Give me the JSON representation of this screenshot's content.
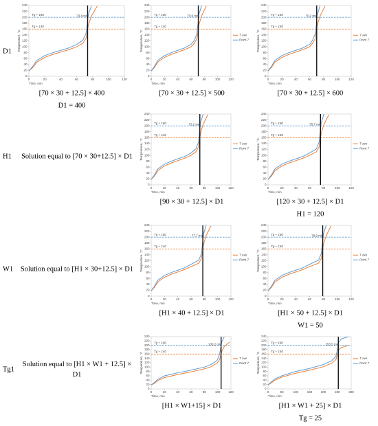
{
  "rows": [
    {
      "label": "D1",
      "text": []
    },
    {
      "label": "H1",
      "text": [
        "Solution equal to [70 × 30+12.5] × D1"
      ]
    },
    {
      "label": "W1",
      "text": [
        "Solution equal to [H1 × 30+12.5] × D1"
      ]
    },
    {
      "label": "Tg1",
      "text": [
        "Solution equal to [H1 × W1 + 12.5] ×",
        "D1"
      ]
    }
  ],
  "chart_data": [
    {
      "type": "line",
      "caption": [
        "[70 × 30 + 12.5] × 400",
        "D1 = 400"
      ],
      "xlabel": "Time, min",
      "ylabel": "Temperature, °C",
      "xlim": [
        0,
        120
      ],
      "xticks": [
        0,
        20,
        40,
        60,
        80,
        100,
        120
      ],
      "ylim": [
        0,
        240
      ],
      "yticks": [
        0,
        20,
        40,
        60,
        80,
        100,
        120,
        140,
        160,
        180,
        200,
        220,
        240
      ],
      "legend": false,
      "marker": {
        "value": 73.8,
        "label": "73.8 min"
      },
      "ref_lines": [
        {
          "value": 200,
          "label": "Tg + 180",
          "color": "#5b9bd5"
        },
        {
          "value": 160,
          "label": "Tg + 140",
          "color": "#ed7d31"
        }
      ],
      "x": [
        0,
        5,
        10,
        20,
        30,
        40,
        50,
        60,
        67.8,
        71.8,
        74.8,
        78.8,
        85.8
      ],
      "series": [
        {
          "name": "T ave",
          "color": "#ed7d31",
          "values": [
            18,
            30,
            48,
            64,
            74,
            82,
            90,
            100,
            112,
            128,
            175,
            205,
            238
          ]
        },
        {
          "name": "Point 7",
          "color": "#5b9bd5",
          "values": [
            18,
            34,
            54,
            70,
            80,
            88,
            96,
            108,
            122,
            145,
            210,
            240,
            null
          ]
        }
      ]
    },
    {
      "type": "line",
      "caption": [
        "[70 × 30 + 12.5] × 500"
      ],
      "xlabel": "Time, min",
      "ylabel": "Temperature, °C",
      "xlim": [
        0,
        120
      ],
      "xticks": [
        0,
        20,
        40,
        60,
        80,
        100,
        120
      ],
      "ylim": [
        0,
        240
      ],
      "yticks": [
        0,
        20,
        40,
        60,
        80,
        100,
        120,
        140,
        160,
        180,
        200,
        220,
        240
      ],
      "legend": "right",
      "marker": {
        "value": 70.9,
        "label": "70.9 min"
      },
      "ref_lines": [
        {
          "value": 200,
          "label": "Tg + 180",
          "color": "#5b9bd5"
        },
        {
          "value": 160,
          "label": "Tg + 140",
          "color": "#ed7d31"
        }
      ],
      "x": [
        0,
        5,
        10,
        20,
        30,
        40,
        50,
        60,
        64.9,
        68.9,
        71.9,
        75.9,
        82.9
      ],
      "series": [
        {
          "name": "T ave",
          "color": "#ed7d31",
          "values": [
            18,
            30,
            48,
            64,
            74,
            82,
            90,
            100,
            112,
            128,
            175,
            205,
            238
          ]
        },
        {
          "name": "Point 7",
          "color": "#5b9bd5",
          "values": [
            18,
            34,
            54,
            70,
            80,
            88,
            96,
            108,
            122,
            145,
            210,
            240,
            null
          ]
        }
      ]
    },
    {
      "type": "line",
      "caption": [
        "[70 × 30 + 12.5] × 600"
      ],
      "xlabel": "Time, min",
      "ylabel": "Temperature, °C",
      "xlim": [
        0,
        120
      ],
      "xticks": [
        0,
        20,
        40,
        60,
        80,
        100,
        120
      ],
      "ylim": [
        0,
        240
      ],
      "yticks": [
        0,
        20,
        40,
        60,
        80,
        100,
        120,
        140,
        160,
        180,
        200,
        220,
        240
      ],
      "legend": "right",
      "marker": {
        "value": 70.2,
        "label": "70.2 min"
      },
      "ref_lines": [
        {
          "value": 200,
          "label": "Tg + 180",
          "color": "#5b9bd5"
        },
        {
          "value": 160,
          "label": "Tg + 140",
          "color": "#ed7d31"
        }
      ],
      "x": [
        0,
        5,
        10,
        20,
        30,
        40,
        50,
        60,
        64.2,
        68.2,
        71.2,
        75.2,
        82.2
      ],
      "series": [
        {
          "name": "T ave",
          "color": "#ed7d31",
          "values": [
            18,
            30,
            48,
            64,
            74,
            82,
            90,
            100,
            112,
            128,
            175,
            205,
            238
          ]
        },
        {
          "name": "Point 7",
          "color": "#5b9bd5",
          "values": [
            18,
            34,
            54,
            70,
            80,
            88,
            96,
            108,
            122,
            145,
            210,
            240,
            null
          ]
        }
      ]
    },
    {
      "type": "line",
      "caption": [
        "[90 × 30 + 12.5] × D1"
      ],
      "xlabel": "Time, min",
      "ylabel": "Temperature, °C",
      "xlim": [
        0,
        120
      ],
      "xticks": [
        0,
        20,
        40,
        60,
        80,
        100,
        120
      ],
      "ylim": [
        0,
        240
      ],
      "yticks": [
        0,
        20,
        40,
        60,
        80,
        100,
        120,
        140,
        160,
        180,
        200,
        220,
        240
      ],
      "legend": "right",
      "marker": {
        "value": 73.2,
        "label": "73.2 min"
      },
      "ref_lines": [
        {
          "value": 200,
          "label": "Tg + 180",
          "color": "#5b9bd5"
        },
        {
          "value": 160,
          "label": "Tg + 140",
          "color": "#ed7d31"
        }
      ],
      "x": [
        0,
        5,
        10,
        20,
        30,
        40,
        50,
        60,
        67.2,
        71.2,
        74.2,
        78.2,
        85.2
      ],
      "series": [
        {
          "name": "T ave",
          "color": "#ed7d31",
          "values": [
            18,
            30,
            48,
            64,
            74,
            82,
            90,
            100,
            112,
            128,
            175,
            205,
            238
          ]
        },
        {
          "name": "Point 7",
          "color": "#5b9bd5",
          "values": [
            18,
            34,
            54,
            70,
            80,
            88,
            96,
            108,
            122,
            145,
            210,
            240,
            null
          ]
        }
      ]
    },
    {
      "type": "line",
      "caption": [
        "[120 × 30 + 12.5] × D1",
        "H1 = 120"
      ],
      "xlabel": "Time, min",
      "ylabel": "Temperature, °C",
      "xlim": [
        0,
        120
      ],
      "xticks": [
        0,
        20,
        40,
        60,
        80,
        100,
        120
      ],
      "ylim": [
        0,
        240
      ],
      "yticks": [
        0,
        20,
        40,
        60,
        80,
        100,
        120,
        140,
        160,
        180,
        200,
        220,
        240
      ],
      "legend": "right",
      "marker": {
        "value": 75.7,
        "label": "75.7 min"
      },
      "ref_lines": [
        {
          "value": 200,
          "label": "Tg + 180",
          "color": "#5b9bd5"
        },
        {
          "value": 160,
          "label": "Tg + 140",
          "color": "#ed7d31"
        }
      ],
      "x": [
        0,
        5,
        10,
        20,
        30,
        40,
        50,
        60,
        69.7,
        73.7,
        76.7,
        80.7,
        87.7
      ],
      "series": [
        {
          "name": "T ave",
          "color": "#ed7d31",
          "values": [
            18,
            30,
            48,
            64,
            74,
            82,
            90,
            100,
            112,
            128,
            175,
            205,
            238
          ]
        },
        {
          "name": "Point 7",
          "color": "#5b9bd5",
          "values": [
            18,
            34,
            54,
            70,
            80,
            88,
            96,
            108,
            122,
            145,
            210,
            240,
            null
          ]
        }
      ]
    },
    {
      "type": "line",
      "caption": [
        "[H1 × 40 + 12.5] × D1"
      ],
      "xlabel": "Time, min",
      "ylabel": "Temperature, °C",
      "xlim": [
        0,
        120
      ],
      "xticks": [
        0,
        20,
        40,
        60,
        80,
        100,
        120
      ],
      "ylim": [
        0,
        240
      ],
      "yticks": [
        0,
        20,
        40,
        60,
        80,
        100,
        120,
        140,
        160,
        180,
        200,
        220,
        240
      ],
      "legend": "right",
      "marker": {
        "value": 77.7,
        "label": "77.7 min"
      },
      "ref_lines": [
        {
          "value": 200,
          "label": "Tg + 180",
          "color": "#5b9bd5"
        },
        {
          "value": 160,
          "label": "Tg + 140",
          "color": "#ed7d31"
        }
      ],
      "x": [
        0,
        5,
        10,
        20,
        30,
        40,
        50,
        60,
        71.7,
        75.7,
        78.7,
        82.7,
        89.7
      ],
      "series": [
        {
          "name": "T ave",
          "color": "#ed7d31",
          "values": [
            18,
            30,
            48,
            64,
            74,
            82,
            90,
            100,
            112,
            128,
            175,
            205,
            238
          ]
        },
        {
          "name": "Point 7",
          "color": "#5b9bd5",
          "values": [
            18,
            34,
            54,
            70,
            80,
            88,
            96,
            108,
            122,
            145,
            210,
            240,
            null
          ]
        }
      ]
    },
    {
      "type": "line",
      "caption": [
        "[H1 × 50 + 12.5] × D1",
        "W1 = 50"
      ],
      "xlabel": "Time, min",
      "ylabel": "Temperature, °C",
      "xlim": [
        0,
        120
      ],
      "xticks": [
        0,
        20,
        40,
        60,
        80,
        100,
        120
      ],
      "ylim": [
        0,
        240
      ],
      "yticks": [
        0,
        20,
        40,
        60,
        80,
        100,
        120,
        140,
        160,
        180,
        200,
        220,
        240
      ],
      "legend": "right",
      "marker": {
        "value": 78.9,
        "label": "78.9 min"
      },
      "ref_lines": [
        {
          "value": 200,
          "label": "Tg + 180",
          "color": "#5b9bd5"
        },
        {
          "value": 160,
          "label": "Tg + 140",
          "color": "#ed7d31"
        }
      ],
      "x": [
        0,
        5,
        10,
        20,
        30,
        40,
        50,
        60,
        72.9,
        76.9,
        79.9,
        83.9,
        90.9
      ],
      "series": [
        {
          "name": "T ave",
          "color": "#ed7d31",
          "values": [
            18,
            30,
            48,
            64,
            74,
            82,
            90,
            100,
            112,
            128,
            175,
            205,
            238
          ]
        },
        {
          "name": "Point 7",
          "color": "#5b9bd5",
          "values": [
            18,
            34,
            54,
            70,
            80,
            88,
            96,
            108,
            122,
            145,
            210,
            240,
            null
          ]
        }
      ]
    },
    {
      "type": "line",
      "caption": [
        "[H1 × W1+15] × D1"
      ],
      "xlabel": "Time, min",
      "ylabel": "Temperature, °C",
      "xlim": [
        0,
        120
      ],
      "xticks": [
        0,
        20,
        40,
        60,
        80,
        100,
        120
      ],
      "ylim": [
        0,
        240
      ],
      "yticks": [
        0,
        20,
        40,
        60,
        80,
        100,
        120,
        140,
        160,
        180,
        200,
        220,
        240
      ],
      "legend": "right",
      "marker": {
        "value": 105.2,
        "label": "105.2 min"
      },
      "ref_lines": [
        {
          "value": 200,
          "label": "Tg + 180",
          "color": "#5b9bd5"
        },
        {
          "value": 160,
          "label": "Tg + 140",
          "color": "#ed7d31"
        }
      ],
      "x": [
        0,
        5,
        10,
        20,
        40,
        60,
        80,
        90,
        99,
        103,
        106,
        110,
        118
      ],
      "series": [
        {
          "name": "T ave",
          "color": "#ed7d31",
          "values": [
            18,
            26,
            38,
            52,
            66,
            78,
            92,
            102,
            118,
            135,
            170,
            195,
            215
          ]
        },
        {
          "name": "Point 7",
          "color": "#5b9bd5",
          "values": [
            18,
            30,
            44,
            60,
            74,
            86,
            100,
            112,
            130,
            160,
            215,
            240,
            null
          ]
        }
      ]
    },
    {
      "type": "line",
      "caption": [
        "[H1 × W1 + 25] × D1",
        "Tg = 25"
      ],
      "xlabel": "Time, min",
      "ylabel": "Temperature, °C",
      "xlim": [
        0,
        300
      ],
      "xticks": [
        0,
        50,
        100,
        150,
        200,
        250,
        300
      ],
      "ylim": [
        0,
        240
      ],
      "yticks": [
        0,
        20,
        40,
        60,
        80,
        100,
        120,
        140,
        160,
        180,
        200,
        220,
        240
      ],
      "legend": "right",
      "marker": {
        "value": 253.5,
        "label": "253.5 min"
      },
      "ref_lines": [
        {
          "value": 200,
          "label": "Tg + 180",
          "color": "#5b9bd5"
        },
        {
          "value": 160,
          "label": "Tg + 140",
          "color": "#ed7d31"
        }
      ],
      "x": [
        0,
        10,
        25,
        50,
        100,
        150,
        200,
        230,
        245,
        251,
        255,
        265,
        290
      ],
      "series": [
        {
          "name": "T ave",
          "color": "#ed7d31",
          "values": [
            18,
            26,
            40,
            54,
            72,
            86,
            102,
            118,
            135,
            160,
            180,
            190,
            200
          ]
        },
        {
          "name": "Point 7",
          "color": "#5b9bd5",
          "values": [
            18,
            30,
            46,
            60,
            80,
            94,
            112,
            130,
            150,
            185,
            215,
            230,
            240
          ]
        }
      ]
    }
  ]
}
